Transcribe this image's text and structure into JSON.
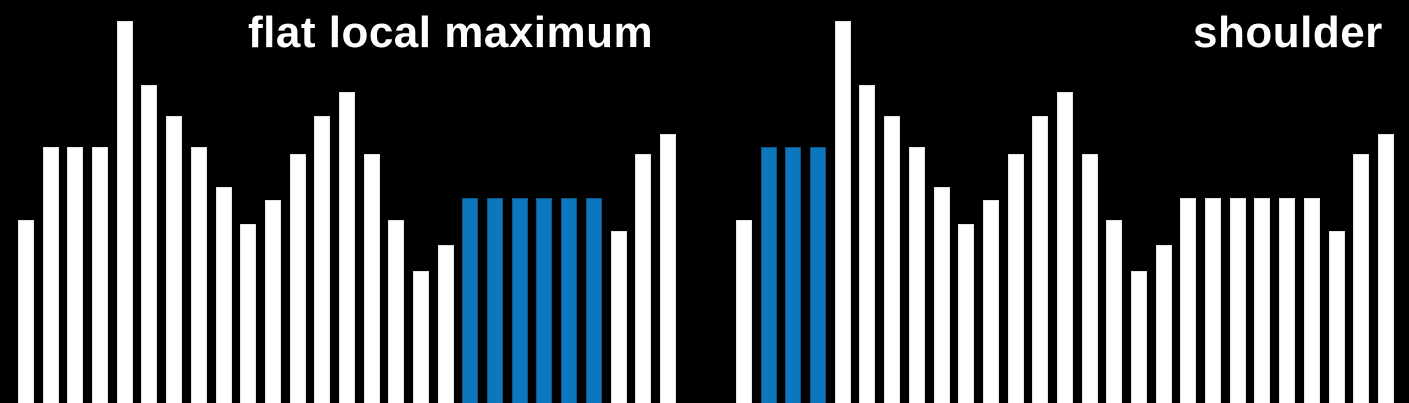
{
  "figure": {
    "background_color": "#000000",
    "bar_color": "#ffffff",
    "highlight_color": "#0d77be"
  },
  "chart_data": [
    {
      "type": "bar",
      "title": "flat local maximum",
      "bar_color": "#ffffff",
      "highlight_color": "#0d77be",
      "background": "#000000",
      "axes_visible": false,
      "units": "bar heights in px, baseline at bottom edge (0-403)",
      "values": [
        183,
        256,
        256,
        256,
        382,
        318,
        287,
        256,
        216,
        179,
        203,
        249,
        287,
        311,
        249,
        183,
        132,
        158,
        205,
        205,
        205,
        205,
        205,
        205,
        172,
        249,
        269
      ],
      "highlighted_indices": [
        18,
        19,
        20,
        21,
        22,
        23
      ]
    },
    {
      "type": "bar",
      "title": "shoulder",
      "bar_color": "#ffffff",
      "highlight_color": "#0d77be",
      "background": "#000000",
      "axes_visible": false,
      "units": "bar heights in px, baseline at bottom edge (0-403)",
      "values": [
        183,
        256,
        256,
        256,
        382,
        318,
        287,
        256,
        216,
        179,
        203,
        249,
        287,
        311,
        249,
        183,
        132,
        158,
        205,
        205,
        205,
        205,
        205,
        205,
        172,
        249,
        269
      ],
      "highlighted_indices": [
        1,
        2,
        3
      ]
    }
  ]
}
